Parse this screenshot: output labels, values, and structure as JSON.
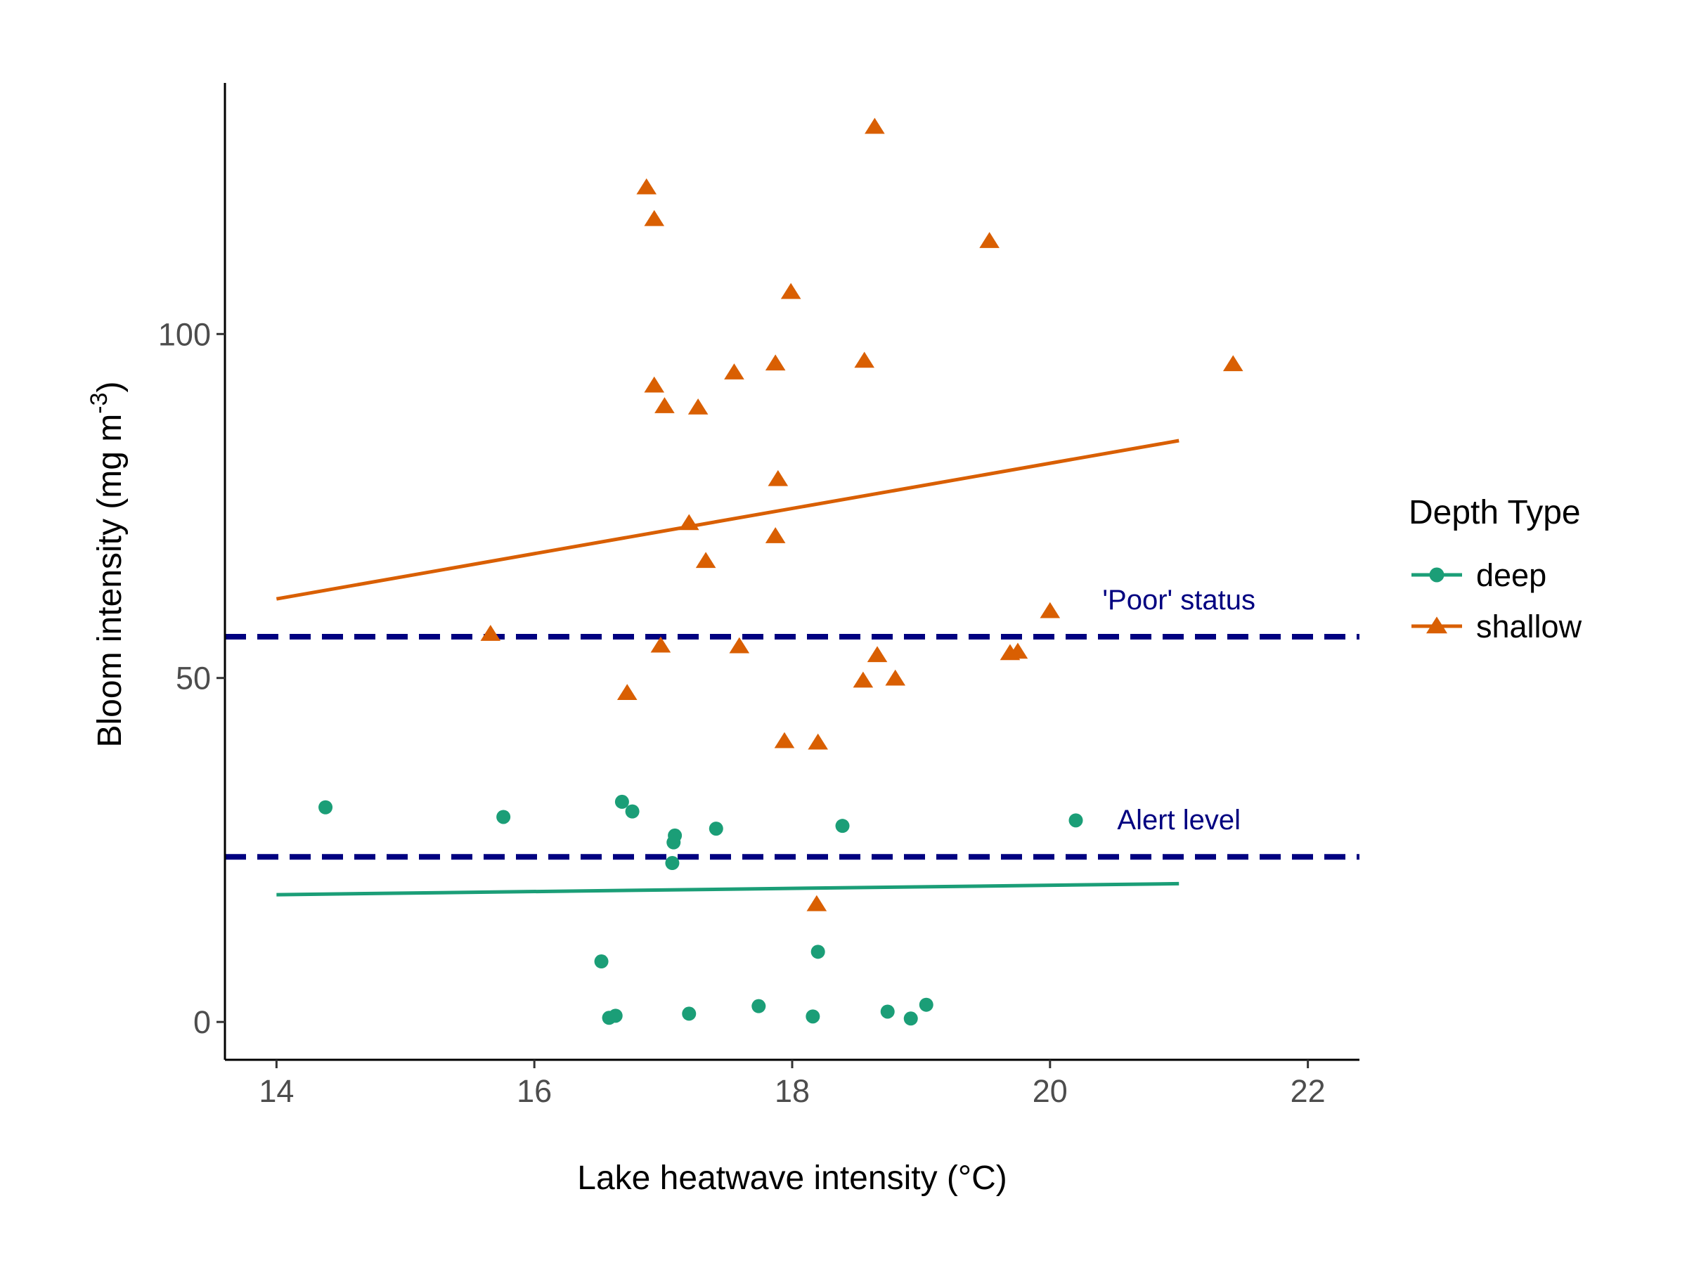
{
  "chart_data": {
    "type": "scatter",
    "xlabel": "Lake heatwave intensity (°C)",
    "ylabel": "Bloom intensity (mg m",
    "ylabel_superscript": "-3",
    "ylabel_close": ")",
    "xlim": [
      13.6,
      22.4
    ],
    "ylim": [
      -5.5,
      136.5
    ],
    "x_ticks": [
      14,
      16,
      18,
      20,
      22
    ],
    "x_tick_labels": [
      "14",
      "16",
      "18",
      "20",
      "22"
    ],
    "y_ticks": [
      0,
      50,
      100
    ],
    "y_tick_labels": [
      "0",
      "50",
      "100"
    ],
    "grid": false,
    "legend": {
      "title": "Depth Type",
      "position": "right"
    },
    "reference_lines": [
      {
        "label": "'Poor' status",
        "y": 56,
        "color": "#000080",
        "label_x": 21.0,
        "label_y": 60
      },
      {
        "label": "Alert level",
        "y": 24,
        "color": "#000080",
        "label_x": 21.0,
        "label_y": 28
      }
    ],
    "series": [
      {
        "name": "deep",
        "color": "#1b9e77",
        "marker": "circle",
        "points": [
          [
            14.38,
            31.2
          ],
          [
            15.76,
            29.8
          ],
          [
            16.68,
            32.0
          ],
          [
            16.76,
            30.6
          ],
          [
            17.09,
            27.1
          ],
          [
            17.08,
            26.1
          ],
          [
            17.41,
            28.1
          ],
          [
            17.07,
            23.1
          ],
          [
            18.39,
            28.5
          ],
          [
            20.2,
            29.3
          ],
          [
            16.52,
            8.8
          ],
          [
            18.2,
            10.2
          ],
          [
            16.58,
            0.6
          ],
          [
            16.63,
            0.9
          ],
          [
            17.2,
            1.2
          ],
          [
            17.74,
            2.3
          ],
          [
            18.16,
            0.8
          ],
          [
            18.74,
            1.5
          ],
          [
            18.92,
            0.5
          ],
          [
            19.04,
            2.5
          ]
        ],
        "trend": [
          [
            14,
            18.5
          ],
          [
            21,
            20.1
          ]
        ]
      },
      {
        "name": "shallow",
        "color": "#d95f02",
        "marker": "triangle",
        "points": [
          [
            18.64,
            130.1
          ],
          [
            16.87,
            121.3
          ],
          [
            16.93,
            116.7
          ],
          [
            19.53,
            113.5
          ],
          [
            17.99,
            106.1
          ],
          [
            21.42,
            95.6
          ],
          [
            17.87,
            95.7
          ],
          [
            18.56,
            96.1
          ],
          [
            17.55,
            94.4
          ],
          [
            16.93,
            92.5
          ],
          [
            17.01,
            89.5
          ],
          [
            17.27,
            89.3
          ],
          [
            17.89,
            78.9
          ],
          [
            17.2,
            72.5
          ],
          [
            17.87,
            70.6
          ],
          [
            17.33,
            67.0
          ],
          [
            20.0,
            59.7
          ],
          [
            15.66,
            56.4
          ],
          [
            16.98,
            54.7
          ],
          [
            17.59,
            54.6
          ],
          [
            18.66,
            53.3
          ],
          [
            19.69,
            53.6
          ],
          [
            19.75,
            53.8
          ],
          [
            18.55,
            49.6
          ],
          [
            18.8,
            49.9
          ],
          [
            16.72,
            47.8
          ],
          [
            17.94,
            40.8
          ],
          [
            18.2,
            40.6
          ],
          [
            18.19,
            17.1
          ]
        ],
        "trend": [
          [
            14,
            61.5
          ],
          [
            21,
            84.5
          ]
        ]
      }
    ]
  }
}
